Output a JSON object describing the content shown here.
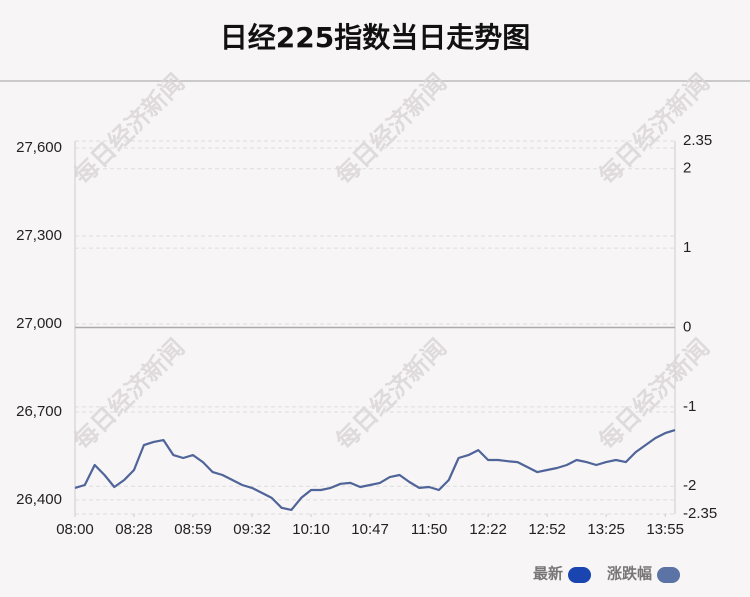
{
  "chart_data": {
    "type": "line",
    "title": "日经225指数当日走势图",
    "watermark": "每日经济新闻",
    "x": [
      0,
      1,
      2,
      3,
      4,
      5,
      6,
      7,
      8,
      9,
      10,
      11,
      12,
      13,
      14,
      15,
      16,
      17,
      18,
      19,
      20,
      21,
      22,
      23,
      24,
      25,
      26,
      27,
      28,
      29,
      30,
      31,
      32,
      33,
      34,
      35,
      36,
      37,
      38,
      39,
      40,
      41,
      42,
      43,
      44,
      45,
      46,
      47,
      48,
      49,
      50,
      51,
      52,
      53,
      54,
      55,
      56,
      57,
      58,
      59,
      60,
      61
    ],
    "series": [
      {
        "name": "最新",
        "color": "#4f6499",
        "values": [
          26441,
          26451,
          26519,
          26485,
          26444,
          26468,
          26502,
          26587,
          26598,
          26604,
          26553,
          26543,
          26553,
          26529,
          26495,
          26485,
          26468,
          26451,
          26441,
          26424,
          26407,
          26373,
          26366,
          26407,
          26434,
          26434,
          26441,
          26455,
          26458,
          26444,
          26451,
          26458,
          26478,
          26485,
          26461,
          26441,
          26444,
          26434,
          26468,
          26543,
          26553,
          26570,
          26536,
          26536,
          26532,
          26529,
          26512,
          26495,
          26502,
          26509,
          26519,
          26536,
          26529,
          26519,
          26529,
          26536,
          26529,
          26563,
          26587,
          26611,
          26628,
          26638
        ]
      }
    ],
    "legend": [
      {
        "name": "最新",
        "color": "#1a44b0"
      },
      {
        "name": "涨跌幅",
        "color": "#5c73a6"
      }
    ],
    "xlim": [
      0,
      61
    ],
    "xticks": [
      {
        "value": 0,
        "label": "08:00"
      },
      {
        "value": 6,
        "label": "08:28"
      },
      {
        "value": 12,
        "label": "08:59"
      },
      {
        "value": 18,
        "label": "09:32"
      },
      {
        "value": 24,
        "label": "10:10"
      },
      {
        "value": 30,
        "label": "10:47"
      },
      {
        "value": 36,
        "label": "11:50"
      },
      {
        "value": 42,
        "label": "12:22"
      },
      {
        "value": 48,
        "label": "12:52"
      },
      {
        "value": 54,
        "label": "13:25"
      },
      {
        "value": 60,
        "label": "13:55"
      }
    ],
    "ylim": [
      26352,
      27624
    ],
    "yticks": [
      {
        "value": 26400,
        "label": "26,400"
      },
      {
        "value": 26700,
        "label": "26,700"
      },
      {
        "value": 27000,
        "label": "27,000"
      },
      {
        "value": 27300,
        "label": "27,300"
      },
      {
        "value": 27600,
        "label": "27,600"
      }
    ],
    "y2lim": [
      -2.35,
      2.35
    ],
    "y2ticks": [
      -2.35,
      -2,
      -1,
      0,
      1,
      2,
      2.35
    ],
    "grid": true
  }
}
